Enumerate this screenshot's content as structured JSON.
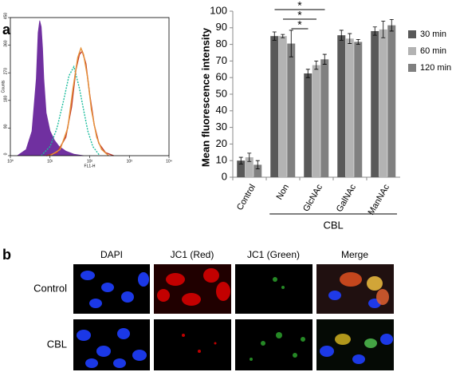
{
  "panels": {
    "a": "a",
    "b": "b"
  },
  "chart_data": [
    {
      "type": "area",
      "xlabel": "FL1-H",
      "ylabel": "Counts",
      "log_x": true,
      "xlim": [
        1,
        10000
      ],
      "xticks": [
        {
          "value": 1,
          "label": "10⁰"
        },
        {
          "value": 10,
          "label": "10¹"
        },
        {
          "value": 100,
          "label": "10²"
        },
        {
          "value": 1000,
          "label": "10³"
        },
        {
          "value": 10000,
          "label": "10⁴"
        }
      ],
      "ylim": [
        0,
        450
      ],
      "yticks": [
        0,
        90,
        180,
        270,
        360,
        450
      ],
      "series": [
        {
          "color": "#7030a0",
          "fill": true,
          "x": [
            1.5,
            2.5,
            3.5,
            4.5,
            5,
            5.5,
            6,
            6.5,
            7,
            8,
            10,
            13,
            17,
            25,
            40,
            70
          ],
          "values": [
            0,
            20,
            80,
            250,
            400,
            440,
            420,
            350,
            250,
            140,
            80,
            50,
            30,
            15,
            5,
            0
          ]
        },
        {
          "color": "#1abc9c",
          "fill": false,
          "x": [
            6,
            10,
            15,
            22,
            30,
            40,
            55,
            70,
            90,
            120,
            180
          ],
          "values": [
            0,
            30,
            90,
            180,
            260,
            290,
            220,
            150,
            80,
            30,
            0
          ]
        },
        {
          "color": "#c0392b",
          "fill": false,
          "x": [
            8,
            15,
            25,
            35,
            45,
            55,
            65,
            80,
            100,
            130,
            170,
            250,
            400
          ],
          "values": [
            0,
            10,
            60,
            160,
            280,
            330,
            340,
            300,
            200,
            100,
            40,
            10,
            0
          ]
        },
        {
          "color": "#e69138",
          "fill": false,
          "x": [
            10,
            18,
            28,
            38,
            50,
            60,
            70,
            90,
            110,
            150,
            200,
            300
          ],
          "values": [
            0,
            20,
            90,
            220,
            320,
            350,
            330,
            250,
            150,
            60,
            20,
            0
          ]
        }
      ]
    },
    {
      "type": "bar",
      "ylabel": "Mean fluorescence intensity",
      "categories": [
        "Control",
        "Non",
        "GlcNAc",
        "GalNAc",
        "ManNAc"
      ],
      "group_label": "CBL",
      "ylim": [
        0,
        100
      ],
      "yticks": [
        0,
        10,
        20,
        30,
        40,
        50,
        60,
        70,
        80,
        90,
        100
      ],
      "series": [
        {
          "name": "30 min",
          "color": "#595959",
          "values": [
            10,
            85,
            62.5,
            85.5,
            88
          ],
          "errors": [
            2,
            2.5,
            2.5,
            3,
            2.5
          ]
        },
        {
          "name": "60 min",
          "color": "#b3b3b3",
          "values": [
            12,
            85,
            67.5,
            83.5,
            89
          ],
          "errors": [
            2.5,
            1,
            2.5,
            3,
            5
          ]
        },
        {
          "name": "120 min",
          "color": "#808080",
          "values": [
            7.5,
            80.5,
            71,
            81.5,
            91.5
          ],
          "errors": [
            2.5,
            8,
            3,
            1.5,
            3.5
          ]
        }
      ],
      "annotations": [
        "*",
        "*",
        "*"
      ]
    }
  ],
  "microscopy": {
    "columns": [
      "DAPI",
      "JC1 (Red)",
      "JC1 (Green)",
      "Merge"
    ],
    "rows": [
      "Control",
      "CBL"
    ]
  }
}
